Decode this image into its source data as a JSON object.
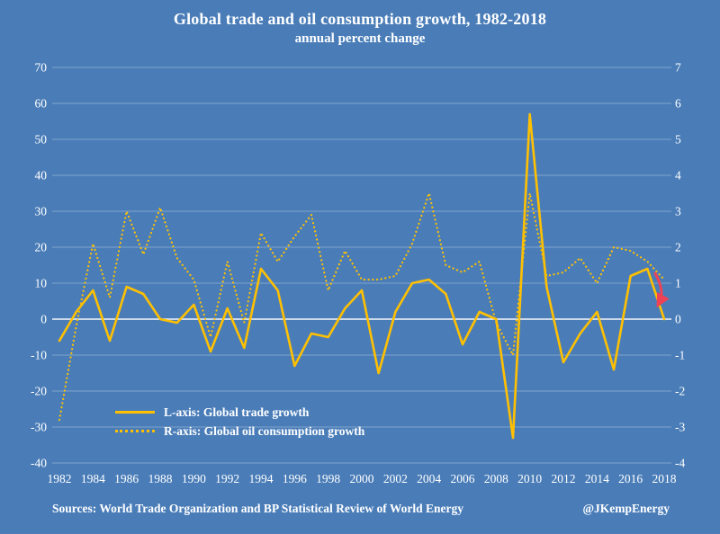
{
  "title": "Global trade and oil consumption growth, 1982-2018",
  "subtitle": "annual percent change",
  "legend": {
    "trade": "L-axis: Global trade growth",
    "oil": "R-axis: Global oil consumption growth"
  },
  "footer": {
    "sources": "Sources: World Trade Organization and BP Statistical Review of World Energy",
    "handle": "@JKempEnergy"
  },
  "colors": {
    "background": "#4a7db8",
    "series": "#ffc000",
    "annotation": "#ee4256",
    "text": "#ffffff",
    "grid": "#ffffff"
  },
  "chart_data": {
    "type": "line",
    "title": "Global trade and oil consumption growth, 1982-2018",
    "subtitle": "annual percent change",
    "grid": "horizontal",
    "legend_position": "bottom-left-inside",
    "x": [
      1982,
      1983,
      1984,
      1985,
      1986,
      1987,
      1988,
      1989,
      1990,
      1991,
      1992,
      1993,
      1994,
      1995,
      1996,
      1997,
      1998,
      1999,
      2000,
      2001,
      2002,
      2003,
      2004,
      2005,
      2006,
      2007,
      2008,
      2009,
      2010,
      2011,
      2012,
      2013,
      2014,
      2015,
      2016,
      2017,
      2018
    ],
    "x_tick_step": 2,
    "x_ticks": [
      1982,
      1984,
      1986,
      1988,
      1990,
      1992,
      1994,
      1996,
      1998,
      2000,
      2002,
      2004,
      2006,
      2008,
      2010,
      2012,
      2014,
      2016,
      2018
    ],
    "left_axis": {
      "min": -40,
      "max": 70,
      "step": 10,
      "ticks": [
        70,
        60,
        50,
        40,
        30,
        20,
        10,
        0,
        -10,
        -20,
        -30,
        -40
      ]
    },
    "right_axis": {
      "min": -4,
      "max": 7,
      "step": 1,
      "ticks": [
        7,
        6,
        5,
        4,
        3,
        2,
        1,
        0,
        -1,
        -2,
        -3,
        -4
      ]
    },
    "series": [
      {
        "name": "L-axis: Global trade growth",
        "axis": "left",
        "style": "solid",
        "values": [
          -6,
          2,
          8,
          -6,
          9,
          7,
          0,
          -1,
          4,
          -9,
          3,
          -8,
          14,
          8,
          -13,
          -4,
          -5,
          3,
          8,
          -15,
          2,
          10,
          11,
          7,
          -7,
          2,
          0,
          -33,
          57,
          9,
          -12,
          -4,
          2,
          -14,
          12,
          14,
          0
        ]
      },
      {
        "name": "R-axis: Global oil consumption growth",
        "axis": "right",
        "style": "dotted",
        "values": [
          -2.8,
          -0.2,
          2.1,
          0.6,
          3.0,
          1.8,
          3.1,
          1.7,
          1.1,
          -0.5,
          1.6,
          -0.1,
          2.4,
          1.6,
          2.3,
          2.9,
          0.8,
          1.9,
          1.1,
          1.1,
          1.2,
          2.1,
          3.5,
          1.5,
          1.3,
          1.6,
          -0.1,
          -1.0,
          3.5,
          1.2,
          1.3,
          1.7,
          1.0,
          2.0,
          1.9,
          1.6,
          1.1
        ]
      }
    ],
    "annotation": {
      "type": "arrow",
      "x": 2017.7,
      "y_right_from": 1.3,
      "y_right_to": 0.45,
      "color": "#ee4256"
    }
  }
}
